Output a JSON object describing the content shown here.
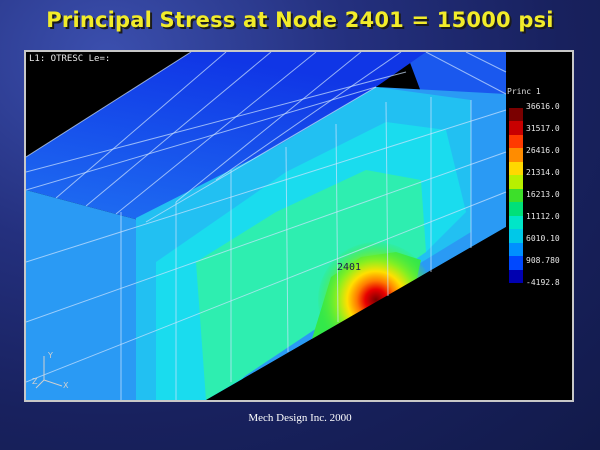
{
  "slide": {
    "title": "Principal Stress at Node 2401 = 15000 psi",
    "footer": "Mech Design Inc. 2000"
  },
  "viewport": {
    "hud_text": "L1: OTRESC Le=:",
    "node_label": "2401",
    "legend": {
      "title": "Princ 1",
      "values": [
        "36616.0",
        "31517.0",
        "26416.0",
        "21314.0",
        "16213.0",
        "11112.0",
        "6010.10",
        "908.780",
        "-4192.8"
      ],
      "colors": [
        "#7a0000",
        "#c80000",
        "#ff3a00",
        "#ff8c00",
        "#ffd800",
        "#b8f000",
        "#3ddf2a",
        "#00e07a",
        "#00e6c8",
        "#00c8e8",
        "#0090ff",
        "#0048ff",
        "#0000b0"
      ]
    },
    "triad": {
      "y": "Y",
      "z": "Z",
      "x": "X"
    },
    "colors": {
      "blue_dark": "#1040e8",
      "blue": "#1c66f0",
      "blue_light": "#2ea2f6",
      "cyan": "#1adcee",
      "green_light": "#2eeeb0",
      "green": "#33e84a",
      "red": "#e80000"
    }
  }
}
